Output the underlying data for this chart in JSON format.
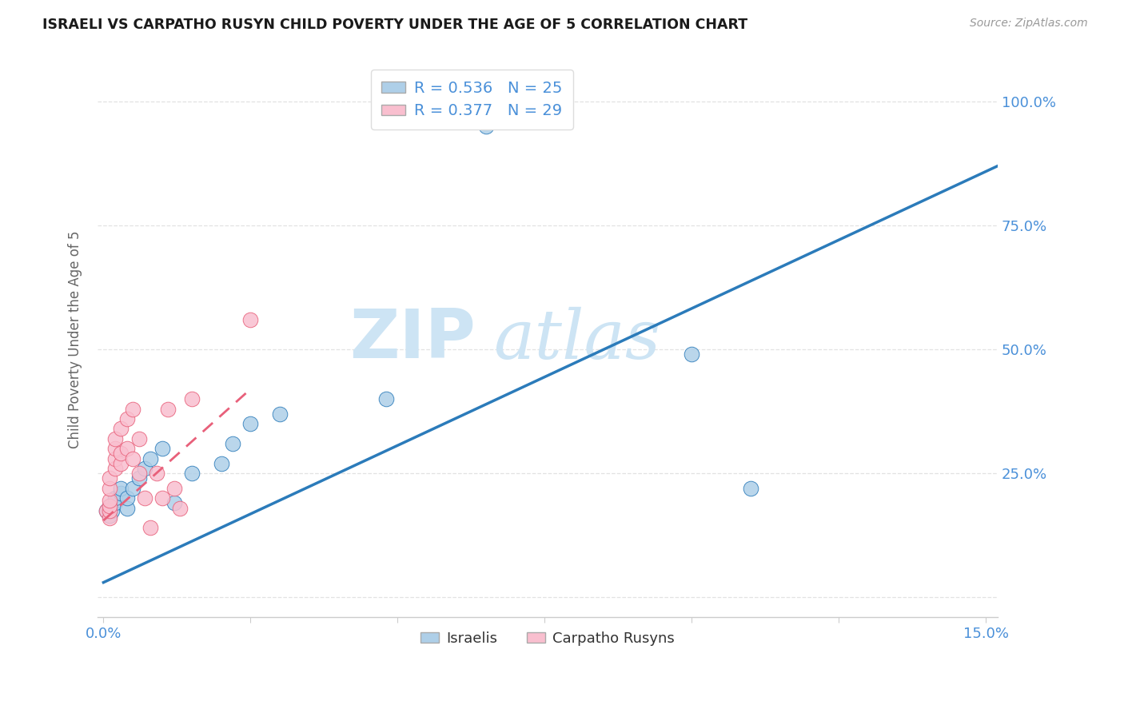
{
  "title": "ISRAELI VS CARPATHO RUSYN CHILD POVERTY UNDER THE AGE OF 5 CORRELATION CHART",
  "source": "Source: ZipAtlas.com",
  "ylabel": "Child Poverty Under the Age of 5",
  "xlim": [
    -0.001,
    0.152
  ],
  "ylim": [
    -0.04,
    1.08
  ],
  "xtick_vals": [
    0.0,
    0.025,
    0.05,
    0.075,
    0.1,
    0.125,
    0.15
  ],
  "xticklabels": [
    "0.0%",
    "",
    "",
    "",
    "",
    "",
    "15.0%"
  ],
  "yticks": [
    0.0,
    0.25,
    0.5,
    0.75,
    1.0
  ],
  "yticklabels_right": [
    "",
    "25.0%",
    "50.0%",
    "75.0%",
    "100.0%"
  ],
  "legend1_label": "R = 0.536   N = 25",
  "legend2_label": "R = 0.377   N = 29",
  "legend_xlabel": "Israelis",
  "legend_ylabel": "Carpatho Rusyns",
  "color_israelis": "#aecfe8",
  "color_carpatho": "#f9bfcf",
  "line_color_israelis": "#2b7bba",
  "line_color_carpatho": "#e8607a",
  "watermark_zip": "ZIP",
  "watermark_atlas": "atlas",
  "watermark_color": "#cde4f4",
  "bg_color": "#ffffff",
  "grid_color": "#e2e2e2",
  "tick_label_color": "#4a90d9",
  "israelis_x": [
    0.0005,
    0.001,
    0.001,
    0.0015,
    0.002,
    0.002,
    0.003,
    0.003,
    0.004,
    0.004,
    0.005,
    0.006,
    0.007,
    0.008,
    0.01,
    0.012,
    0.015,
    0.02,
    0.022,
    0.025,
    0.03,
    0.048,
    0.065,
    0.1,
    0.11
  ],
  "israelis_y": [
    0.175,
    0.165,
    0.185,
    0.175,
    0.19,
    0.2,
    0.21,
    0.22,
    0.18,
    0.2,
    0.22,
    0.24,
    0.26,
    0.28,
    0.3,
    0.19,
    0.25,
    0.27,
    0.31,
    0.35,
    0.37,
    0.4,
    0.95,
    0.49,
    0.22
  ],
  "carpatho_x": [
    0.0005,
    0.001,
    0.001,
    0.001,
    0.001,
    0.001,
    0.001,
    0.002,
    0.002,
    0.002,
    0.002,
    0.003,
    0.003,
    0.003,
    0.004,
    0.004,
    0.005,
    0.005,
    0.006,
    0.006,
    0.007,
    0.008,
    0.009,
    0.01,
    0.011,
    0.012,
    0.013,
    0.015,
    0.025
  ],
  "carpatho_y": [
    0.175,
    0.16,
    0.175,
    0.185,
    0.195,
    0.22,
    0.24,
    0.26,
    0.28,
    0.3,
    0.32,
    0.27,
    0.29,
    0.34,
    0.3,
    0.36,
    0.28,
    0.38,
    0.25,
    0.32,
    0.2,
    0.14,
    0.25,
    0.2,
    0.38,
    0.22,
    0.18,
    0.4,
    0.56
  ],
  "israelis_line_x": [
    0.0,
    0.152
  ],
  "israelis_line_y": [
    0.03,
    0.87
  ],
  "carpatho_line_x": [
    0.0,
    0.025
  ],
  "carpatho_line_y": [
    0.155,
    0.42
  ]
}
